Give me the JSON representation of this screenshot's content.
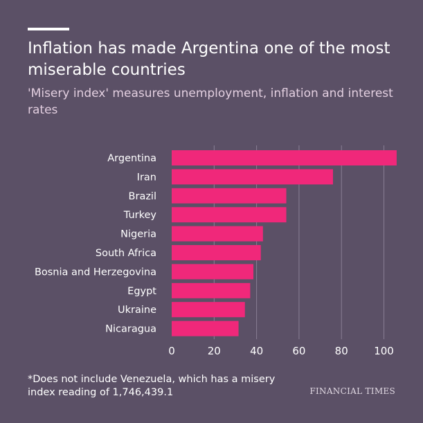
{
  "header": {
    "title": "Inflation has made Argentina one of the most miserable countries",
    "subtitle": "'Misery index' measures unemployment, inflation and interest rates"
  },
  "footnote": "*Does not include Venezuela, which has a misery index reading of 1,746,439.1",
  "source": "FINANCIAL TIMES",
  "colors": {
    "background": "#5b5066",
    "bar": "#f0287a",
    "grid": "#8a7f95",
    "label": "#ffffff"
  },
  "chart_data": {
    "type": "bar",
    "orientation": "horizontal",
    "title": "Inflation has made Argentina one of the most miserable countries",
    "subtitle": "'Misery index' measures unemployment, inflation and interest rates",
    "xlabel": "",
    "ylabel": "",
    "categories": [
      "Argentina",
      "Iran",
      "Brazil",
      "Turkey",
      "Nigeria",
      "South Africa",
      "Bosnia and Herzegovina",
      "Egypt",
      "Ukraine",
      "Nicaragua"
    ],
    "values": [
      106,
      76,
      54,
      54,
      43,
      42,
      38.5,
      37,
      34.5,
      31.5
    ],
    "xlim": [
      0,
      107
    ],
    "xticks": [
      0,
      20,
      40,
      60,
      80,
      100
    ],
    "grid": true
  }
}
